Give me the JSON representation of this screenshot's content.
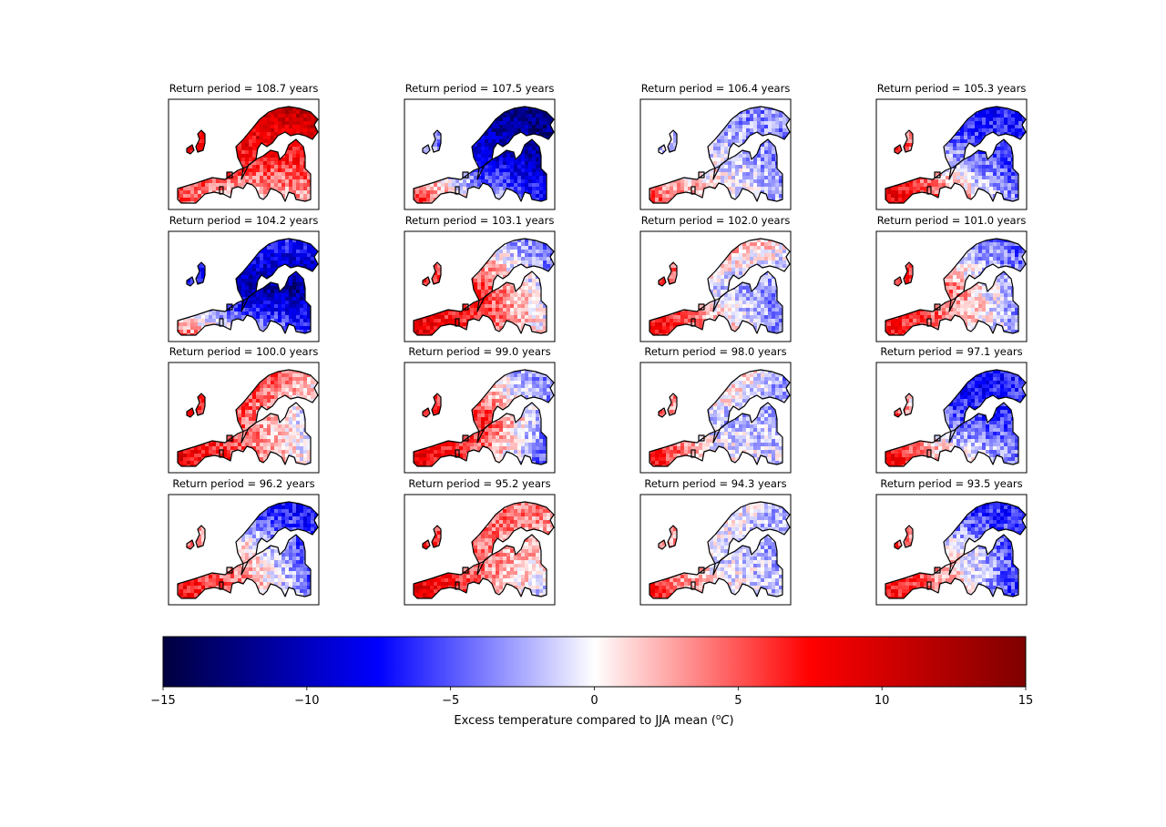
{
  "figure": {
    "panels": [
      {
        "title": "Return period = 108.7 years",
        "pattern": [
          0.55,
          0.7,
          0.9,
          0.5,
          0.5,
          0.45,
          0.35,
          -0.1,
          0.15
        ]
      },
      {
        "title": "Return period = 107.5 years",
        "pattern": [
          0.1,
          -0.75,
          -0.9,
          0.05,
          -0.6,
          -0.75,
          0.6,
          0.1,
          -0.5
        ]
      },
      {
        "title": "Return period = 106.4 years",
        "pattern": [
          0.0,
          -0.3,
          -0.2,
          -0.1,
          -0.05,
          -0.3,
          0.55,
          0.15,
          -0.2
        ]
      },
      {
        "title": "Return period = 105.3 years",
        "pattern": [
          0.5,
          -0.6,
          -0.4,
          0.75,
          -0.2,
          -0.5,
          0.6,
          0.4,
          -0.3
        ]
      },
      {
        "title": "Return period = 104.2 years",
        "pattern": [
          -0.1,
          -0.35,
          -0.4,
          -0.4,
          -0.75,
          -0.8,
          0.55,
          0.1,
          -0.35
        ]
      },
      {
        "title": "Return period = 103.1 years",
        "pattern": [
          0.2,
          -0.1,
          -0.4,
          0.5,
          0.4,
          -0.2,
          0.7,
          0.35,
          0.0
        ]
      },
      {
        "title": "Return period = 102.0 years",
        "pattern": [
          0.4,
          0.3,
          0.1,
          0.55,
          -0.1,
          -0.3,
          0.6,
          0.3,
          -0.4
        ]
      },
      {
        "title": "Return period = 101.0 years",
        "pattern": [
          0.6,
          -0.3,
          -0.35,
          0.55,
          0.25,
          -0.3,
          0.55,
          0.2,
          -0.25
        ]
      },
      {
        "title": "Return period = 100.0 years",
        "pattern": [
          0.35,
          0.5,
          0.2,
          0.6,
          0.3,
          -0.2,
          0.65,
          0.3,
          -0.05
        ]
      },
      {
        "title": "Return period = 99.0 years",
        "pattern": [
          0.2,
          -0.1,
          -0.25,
          0.6,
          0.45,
          -0.3,
          0.7,
          0.15,
          -0.5
        ]
      },
      {
        "title": "Return period = 98.0 years",
        "pattern": [
          0.1,
          0.35,
          -0.3,
          0.45,
          -0.15,
          -0.15,
          0.6,
          0.1,
          -0.1
        ]
      },
      {
        "title": "Return period = 97.1 years",
        "pattern": [
          0.4,
          -0.7,
          -0.35,
          0.6,
          -0.3,
          -0.45,
          0.65,
          0.2,
          -0.2
        ]
      },
      {
        "title": "Return period = 96.2 years",
        "pattern": [
          0.15,
          -0.55,
          -0.5,
          0.5,
          0.1,
          -0.45,
          0.6,
          0.3,
          -0.3
        ]
      },
      {
        "title": "Return period = 95.2 years",
        "pattern": [
          0.1,
          0.35,
          0.25,
          0.6,
          0.25,
          0.1,
          0.7,
          0.3,
          -0.3
        ]
      },
      {
        "title": "Return period = 94.3 years",
        "pattern": [
          0.25,
          0.1,
          -0.2,
          0.35,
          -0.05,
          -0.2,
          0.6,
          0.1,
          -0.15
        ]
      },
      {
        "title": "Return period = 93.5 years",
        "pattern": [
          0.3,
          -0.6,
          -0.4,
          0.55,
          0.05,
          -0.45,
          0.6,
          0.2,
          -0.55
        ]
      }
    ],
    "colorbar": {
      "label": "Excess temperature compared to JJA mean (",
      "label_unit_sup": "o",
      "label_unit": "C",
      "label_close": ")",
      "min": -15,
      "max": 15,
      "ticks": [
        {
          "value": -15,
          "label": "−15"
        },
        {
          "value": -10,
          "label": "−10"
        },
        {
          "value": -5,
          "label": "−5"
        },
        {
          "value": 0,
          "label": "0"
        },
        {
          "value": 5,
          "label": "5"
        },
        {
          "value": 10,
          "label": "10"
        },
        {
          "value": 15,
          "label": "15"
        }
      ],
      "colormap_stops": [
        {
          "value": -15,
          "color": "#00003f"
        },
        {
          "value": -7.5,
          "color": "#0000ff"
        },
        {
          "value": 0,
          "color": "#ffffff"
        },
        {
          "value": 7.5,
          "color": "#ff0000"
        },
        {
          "value": 15,
          "color": "#7f0000"
        }
      ]
    }
  }
}
